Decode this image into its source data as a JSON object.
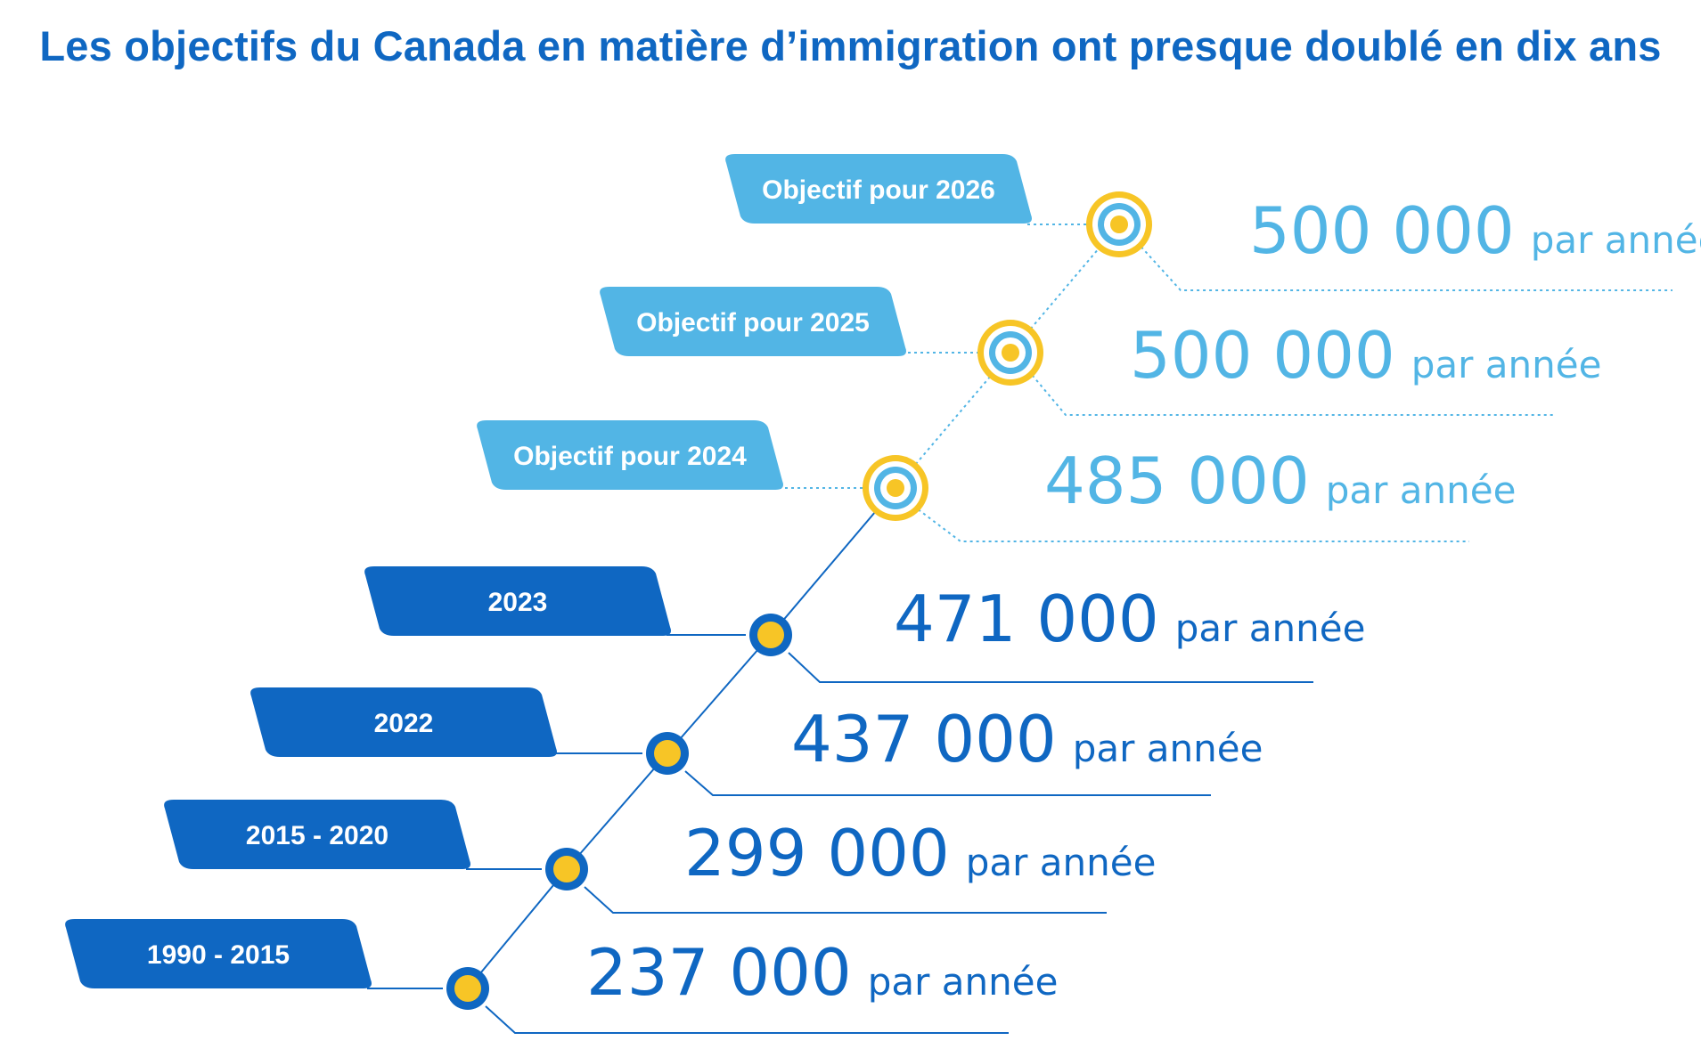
{
  "title": "Les objectifs du Canada en matière d’immigration ont presque doublé en dix ans",
  "colors": {
    "title": "#0f67c2",
    "dark_blue": "#0f67c2",
    "light_blue": "#52b5e5",
    "yellow": "#f7c526",
    "white": "#ffffff"
  },
  "unit": "par année",
  "milestones": [
    {
      "label": "1990 - 2015",
      "value": "237 000",
      "kind": "actual"
    },
    {
      "label": "2015 - 2020",
      "value": "299 000",
      "kind": "actual"
    },
    {
      "label": "2022",
      "value": "437 000",
      "kind": "actual"
    },
    {
      "label": "2023",
      "value": "471 000",
      "kind": "actual"
    },
    {
      "label": "Objectif pour 2024",
      "value": "485 000",
      "kind": "target"
    },
    {
      "label": "Objectif pour 2025",
      "value": "500 000",
      "kind": "target"
    },
    {
      "label": "Objectif pour 2026",
      "value": "500 000",
      "kind": "target"
    }
  ]
}
